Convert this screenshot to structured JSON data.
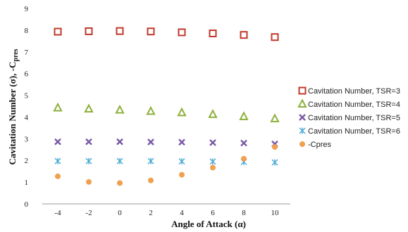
{
  "chart_data": {
    "type": "scatter",
    "xlabel": "Angle of Attack (α)",
    "ylabel": "Cavitation Number (σ), -C",
    "ylabel_sub": "pres",
    "x": [
      -4,
      -2,
      0,
      2,
      4,
      6,
      8,
      10
    ],
    "x_tick_labels": [
      "-4",
      "-2",
      "0",
      "2",
      "4",
      "6",
      "8",
      "10"
    ],
    "ylim": [
      0,
      9
    ],
    "y_ticks": [
      0,
      1,
      2,
      3,
      4,
      5,
      6,
      7,
      8,
      9
    ],
    "grid": false,
    "legend_position": "right",
    "series": [
      {
        "name": "Cavitation Number, TSR=3",
        "marker": "square-icon",
        "color": "#c0392b",
        "values": [
          7.93,
          7.95,
          7.96,
          7.94,
          7.9,
          7.85,
          7.78,
          7.68
        ]
      },
      {
        "name": "Cavitation Number, TSR=4",
        "marker": "triangle-icon",
        "color": "#8db03a",
        "values": [
          4.42,
          4.37,
          4.32,
          4.26,
          4.2,
          4.12,
          4.02,
          3.92
        ]
      },
      {
        "name": "Cavitation Number, TSR=5",
        "marker": "x-icon",
        "color": "#7b5aa6",
        "values": [
          2.86,
          2.86,
          2.86,
          2.85,
          2.84,
          2.82,
          2.8,
          2.76
        ]
      },
      {
        "name": "Cavitation Number, TSR=6",
        "marker": "asterisk-icon",
        "color": "#4aa9d6",
        "values": [
          1.97,
          1.97,
          1.97,
          1.97,
          1.96,
          1.95,
          1.93,
          1.91
        ]
      },
      {
        "name": "-Cpres",
        "marker": "circle-icon",
        "color": "#f0a050",
        "values": [
          1.27,
          1.01,
          0.96,
          1.08,
          1.34,
          1.67,
          2.08,
          2.62
        ]
      }
    ]
  }
}
